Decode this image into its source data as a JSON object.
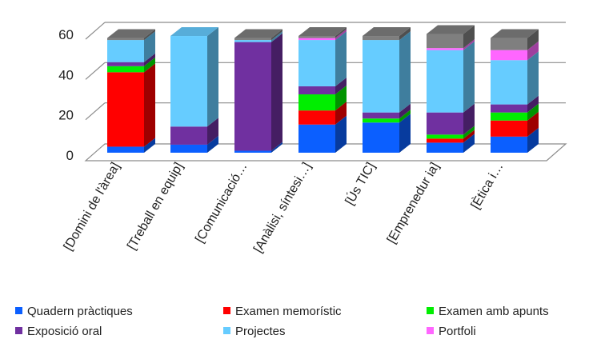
{
  "chart_data": {
    "type": "bar",
    "stacked": true,
    "three_d": true,
    "categories": [
      "[Domini de l'àrea]",
      "[Treball en equip]",
      "[Comunicació…",
      "[Anàlisi, síntesi…]",
      "[Ús TIC]",
      "[Emprenedur ia]",
      "[Ètica i…"
    ],
    "series": [
      {
        "name": "Quadern pràctiques",
        "color": "#0B5FFF",
        "values": [
          3,
          4,
          1,
          14,
          15,
          5,
          8
        ]
      },
      {
        "name": "Examen memorístic",
        "color": "#FF0000",
        "values": [
          37,
          0,
          0,
          7,
          0,
          2,
          8
        ]
      },
      {
        "name": "Examen amb apunts",
        "color": "#00EE00",
        "values": [
          3,
          0,
          0,
          8,
          2,
          2,
          4
        ]
      },
      {
        "name": "Exposició oral",
        "color": "#7030A0",
        "values": [
          2,
          9,
          54,
          4,
          3,
          11,
          4
        ]
      },
      {
        "name": "Projectes",
        "color": "#66CCFF",
        "values": [
          11,
          45,
          1,
          23,
          36,
          31,
          22
        ]
      },
      {
        "name": "Portfoli",
        "color": "#FF66FF",
        "values": [
          0,
          0,
          0,
          1,
          0,
          1,
          5
        ]
      },
      {
        "name": "",
        "color": "#7F7F7F",
        "values": [
          1,
          0,
          1,
          1,
          2,
          7,
          6
        ]
      }
    ],
    "yticks": [
      0,
      20,
      40,
      60
    ],
    "ylim": [
      0,
      60
    ],
    "legend_position": "bottom",
    "grid": true
  }
}
